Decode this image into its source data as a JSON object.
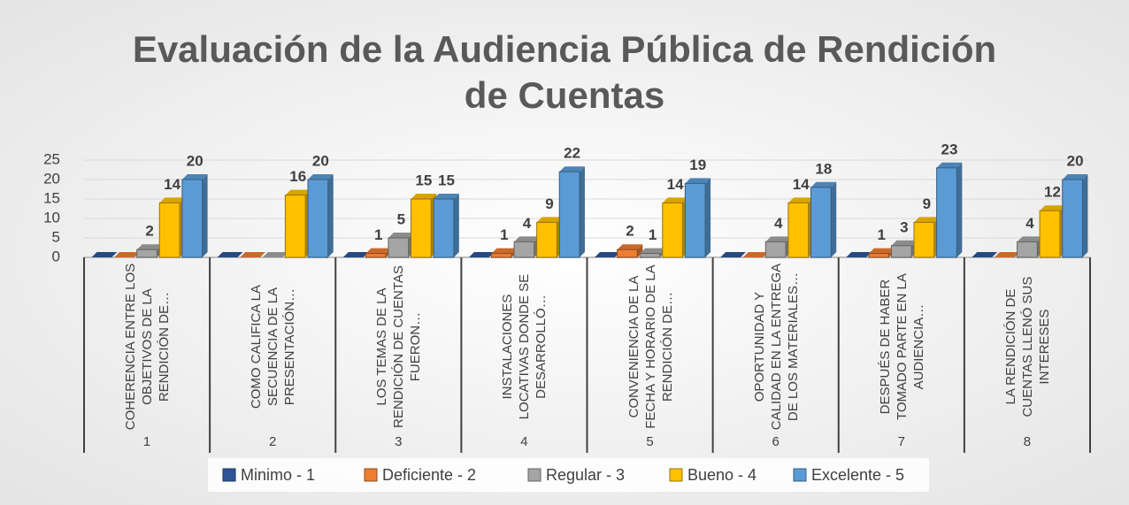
{
  "chart_data": {
    "type": "bar3d",
    "title": "Evaluación de la Audiencia Pública de Rendición de Cuentas",
    "categories": [
      "COHERENCIA ENTRE LOS OBJETIVOS DE LA RENDICIÓN DE…",
      "COMO CALIFICA LA SECUENCIA DE LA PRESENTACIÓN…",
      "LOS TEMAS DE LA RENDICIÓN DE CUENTAS FUERON…",
      "INSTALACIONES LOCATIVAS DONDE SE DESARROLLÓ…",
      "CONVENIENCIA DE LA FECHA Y HORARIO DE LA RENDICIÓN DE…",
      "OPORTUNIDAD Y CALIDAD EN LA ENTREGA DE LOS MATERIALES…",
      "DESPUÉS DE HABER TOMADO PARTE EN LA AUDIENCIA…",
      "LA RENDICIÓN DE CUENTAS LLENÓ SUS INTERESES"
    ],
    "groups": [
      "1",
      "2",
      "3",
      "4",
      "5",
      "6",
      "7",
      "8"
    ],
    "series": [
      {
        "name": "Minimo - 1",
        "color": "#2f5597",
        "values": [
          0,
          0,
          0,
          0,
          0,
          0,
          0,
          0
        ]
      },
      {
        "name": "Deficiente - 2",
        "color": "#ed7d31",
        "values": [
          0,
          0,
          1,
          1,
          2,
          0,
          1,
          0
        ]
      },
      {
        "name": "Regular - 3",
        "color": "#a5a5a5",
        "values": [
          2,
          0,
          5,
          4,
          1,
          4,
          3,
          4
        ]
      },
      {
        "name": "Bueno - 4",
        "color": "#ffc000",
        "values": [
          14,
          16,
          15,
          9,
          14,
          14,
          9,
          12
        ]
      },
      {
        "name": "Excelente - 5",
        "color": "#5b9bd5",
        "values": [
          20,
          20,
          15,
          22,
          19,
          18,
          23,
          20
        ]
      }
    ],
    "ylim": [
      0,
      25
    ],
    "yticks": [
      0,
      5,
      10,
      15,
      20,
      25
    ],
    "legend": "bottom"
  }
}
